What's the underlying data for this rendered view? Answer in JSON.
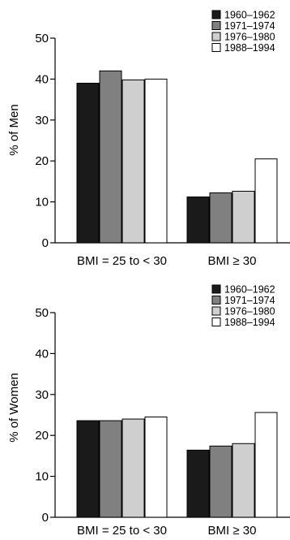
{
  "chart_data": [
    {
      "type": "bar",
      "title": "",
      "ylabel": "% of Men",
      "ylim": [
        0,
        50
      ],
      "yticks": [
        0,
        10,
        20,
        30,
        40,
        50
      ],
      "categories": [
        "BMI = 25 to < 30",
        "BMI ≥ 30"
      ],
      "series": [
        {
          "name": "1960–1962",
          "color": "#1a1a1a",
          "values": [
            39.0,
            11.2
          ]
        },
        {
          "name": "1971–1974",
          "color": "#808080",
          "values": [
            42.0,
            12.2
          ]
        },
        {
          "name": "1976–1980",
          "color": "#cfcfcf",
          "values": [
            39.8,
            12.6
          ]
        },
        {
          "name": "1988–1994",
          "color": "#ffffff",
          "values": [
            40.0,
            20.5
          ]
        }
      ],
      "legend": "top-right",
      "grid": false
    },
    {
      "type": "bar",
      "title": "",
      "ylabel": "% of Women",
      "ylim": [
        0,
        50
      ],
      "yticks": [
        0,
        10,
        20,
        30,
        40,
        50
      ],
      "categories": [
        "BMI = 25 to < 30",
        "BMI ≥ 30"
      ],
      "series": [
        {
          "name": "1960–1962",
          "color": "#1a1a1a",
          "values": [
            23.6,
            16.4
          ]
        },
        {
          "name": "1971–1974",
          "color": "#808080",
          "values": [
            23.6,
            17.4
          ]
        },
        {
          "name": "1976–1980",
          "color": "#cfcfcf",
          "values": [
            24.0,
            18.0
          ]
        },
        {
          "name": "1988–1994",
          "color": "#ffffff",
          "values": [
            24.5,
            25.6
          ]
        }
      ],
      "legend": "top-right",
      "grid": false
    }
  ]
}
